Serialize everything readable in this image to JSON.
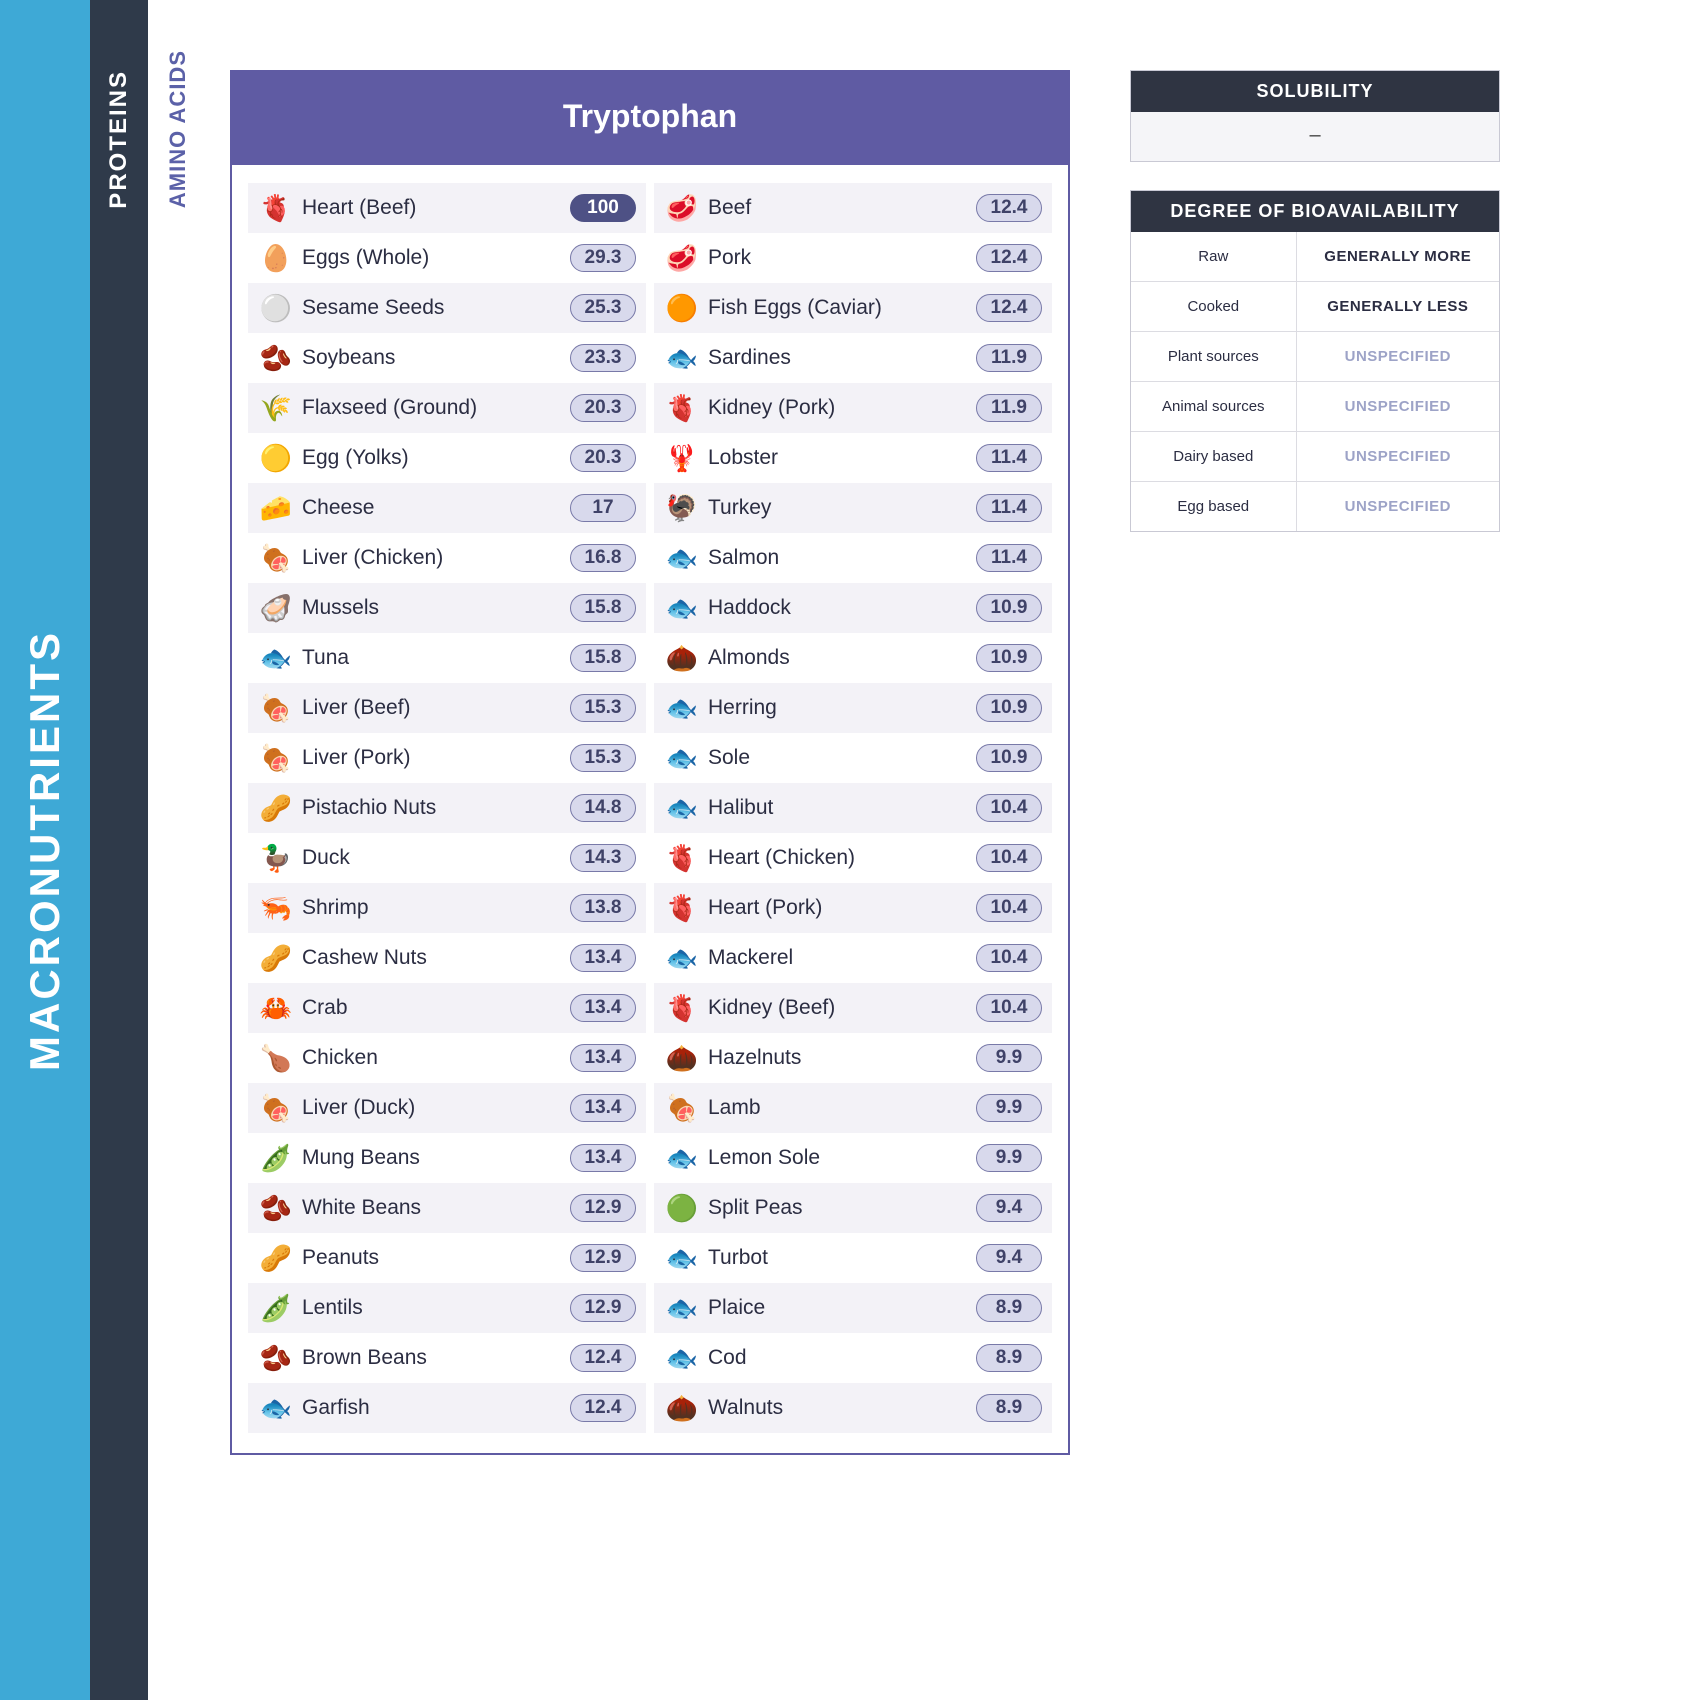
{
  "sidebar": {
    "level1": "MACRONUTRIENTS",
    "level2": "PROTEINS",
    "level3": "AMINO ACIDS"
  },
  "mainCard": {
    "title": "Tryptophan",
    "pill_border_color": "#7879a8",
    "pill_bg_color": "#d8d9ec",
    "pill_text_color": "#3f4268",
    "pill_solid_bg": "#4e5185",
    "pill_solid_text": "#ffffff",
    "columns": [
      [
        {
          "icon": "🫀",
          "name": "Heart (Beef)",
          "value": "100",
          "solid": true
        },
        {
          "icon": "🥚",
          "name": "Eggs (Whole)",
          "value": "29.3"
        },
        {
          "icon": "⚪",
          "name": "Sesame Seeds",
          "value": "25.3"
        },
        {
          "icon": "🫘",
          "name": "Soybeans",
          "value": "23.3"
        },
        {
          "icon": "🌾",
          "name": "Flaxseed (Ground)",
          "value": "20.3"
        },
        {
          "icon": "🟡",
          "name": "Egg (Yolks)",
          "value": "20.3"
        },
        {
          "icon": "🧀",
          "name": "Cheese",
          "value": "17"
        },
        {
          "icon": "🍖",
          "name": "Liver (Chicken)",
          "value": "16.8"
        },
        {
          "icon": "🦪",
          "name": "Mussels",
          "value": "15.8"
        },
        {
          "icon": "🐟",
          "name": "Tuna",
          "value": "15.8"
        },
        {
          "icon": "🍖",
          "name": "Liver (Beef)",
          "value": "15.3"
        },
        {
          "icon": "🍖",
          "name": "Liver (Pork)",
          "value": "15.3"
        },
        {
          "icon": "🥜",
          "name": "Pistachio Nuts",
          "value": "14.8"
        },
        {
          "icon": "🦆",
          "name": "Duck",
          "value": "14.3"
        },
        {
          "icon": "🦐",
          "name": "Shrimp",
          "value": "13.8"
        },
        {
          "icon": "🥜",
          "name": "Cashew Nuts",
          "value": "13.4"
        },
        {
          "icon": "🦀",
          "name": "Crab",
          "value": "13.4"
        },
        {
          "icon": "🍗",
          "name": "Chicken",
          "value": "13.4"
        },
        {
          "icon": "🍖",
          "name": "Liver (Duck)",
          "value": "13.4"
        },
        {
          "icon": "🫛",
          "name": "Mung Beans",
          "value": "13.4"
        },
        {
          "icon": "🫘",
          "name": "White Beans",
          "value": "12.9"
        },
        {
          "icon": "🥜",
          "name": "Peanuts",
          "value": "12.9"
        },
        {
          "icon": "🫛",
          "name": "Lentils",
          "value": "12.9"
        },
        {
          "icon": "🫘",
          "name": "Brown Beans",
          "value": "12.4"
        },
        {
          "icon": "🐟",
          "name": "Garfish",
          "value": "12.4"
        }
      ],
      [
        {
          "icon": "🥩",
          "name": "Beef",
          "value": "12.4"
        },
        {
          "icon": "🥩",
          "name": "Pork",
          "value": "12.4"
        },
        {
          "icon": "🟠",
          "name": "Fish Eggs (Caviar)",
          "value": "12.4"
        },
        {
          "icon": "🐟",
          "name": "Sardines",
          "value": "11.9"
        },
        {
          "icon": "🫀",
          "name": "Kidney (Pork)",
          "value": "11.9"
        },
        {
          "icon": "🦞",
          "name": "Lobster",
          "value": "11.4"
        },
        {
          "icon": "🦃",
          "name": "Turkey",
          "value": "11.4"
        },
        {
          "icon": "🐟",
          "name": "Salmon",
          "value": "11.4"
        },
        {
          "icon": "🐟",
          "name": "Haddock",
          "value": "10.9"
        },
        {
          "icon": "🌰",
          "name": "Almonds",
          "value": "10.9"
        },
        {
          "icon": "🐟",
          "name": "Herring",
          "value": "10.9"
        },
        {
          "icon": "🐟",
          "name": "Sole",
          "value": "10.9"
        },
        {
          "icon": "🐟",
          "name": "Halibut",
          "value": "10.4"
        },
        {
          "icon": "🫀",
          "name": "Heart (Chicken)",
          "value": "10.4"
        },
        {
          "icon": "🫀",
          "name": "Heart (Pork)",
          "value": "10.4"
        },
        {
          "icon": "🐟",
          "name": "Mackerel",
          "value": "10.4"
        },
        {
          "icon": "🫀",
          "name": "Kidney (Beef)",
          "value": "10.4"
        },
        {
          "icon": "🌰",
          "name": "Hazelnuts",
          "value": "9.9"
        },
        {
          "icon": "🍖",
          "name": "Lamb",
          "value": "9.9"
        },
        {
          "icon": "🐟",
          "name": "Lemon Sole",
          "value": "9.9"
        },
        {
          "icon": "🟢",
          "name": "Split Peas",
          "value": "9.4"
        },
        {
          "icon": "🐟",
          "name": "Turbot",
          "value": "9.4"
        },
        {
          "icon": "🐟",
          "name": "Plaice",
          "value": "8.9"
        },
        {
          "icon": "🐟",
          "name": "Cod",
          "value": "8.9"
        },
        {
          "icon": "🌰",
          "name": "Walnuts",
          "value": "8.9"
        }
      ]
    ]
  },
  "solubility": {
    "title": "SOLUBILITY",
    "value": "–"
  },
  "bioavailability": {
    "title": "DEGREE OF BIOAVAILABILITY",
    "rows": [
      {
        "label": "Raw",
        "value": "GENERALLY MORE",
        "style": "strong"
      },
      {
        "label": "Cooked",
        "value": "GENERALLY LESS",
        "style": "strong"
      },
      {
        "label": "Plant sources",
        "value": "UNSPECIFIED",
        "style": "unspec"
      },
      {
        "label": "Animal sources",
        "value": "UNSPECIFIED",
        "style": "unspec"
      },
      {
        "label": "Dairy based",
        "value": "UNSPECIFIED",
        "style": "unspec"
      },
      {
        "label": "Egg based",
        "value": "UNSPECIFIED",
        "style": "unspec"
      }
    ]
  },
  "colors": {
    "sidebar_blue": "#3ea9d6",
    "sidebar_dark": "#2f3a4a",
    "accent_purple": "#5f5ba3",
    "panel_header": "#2f3442"
  }
}
